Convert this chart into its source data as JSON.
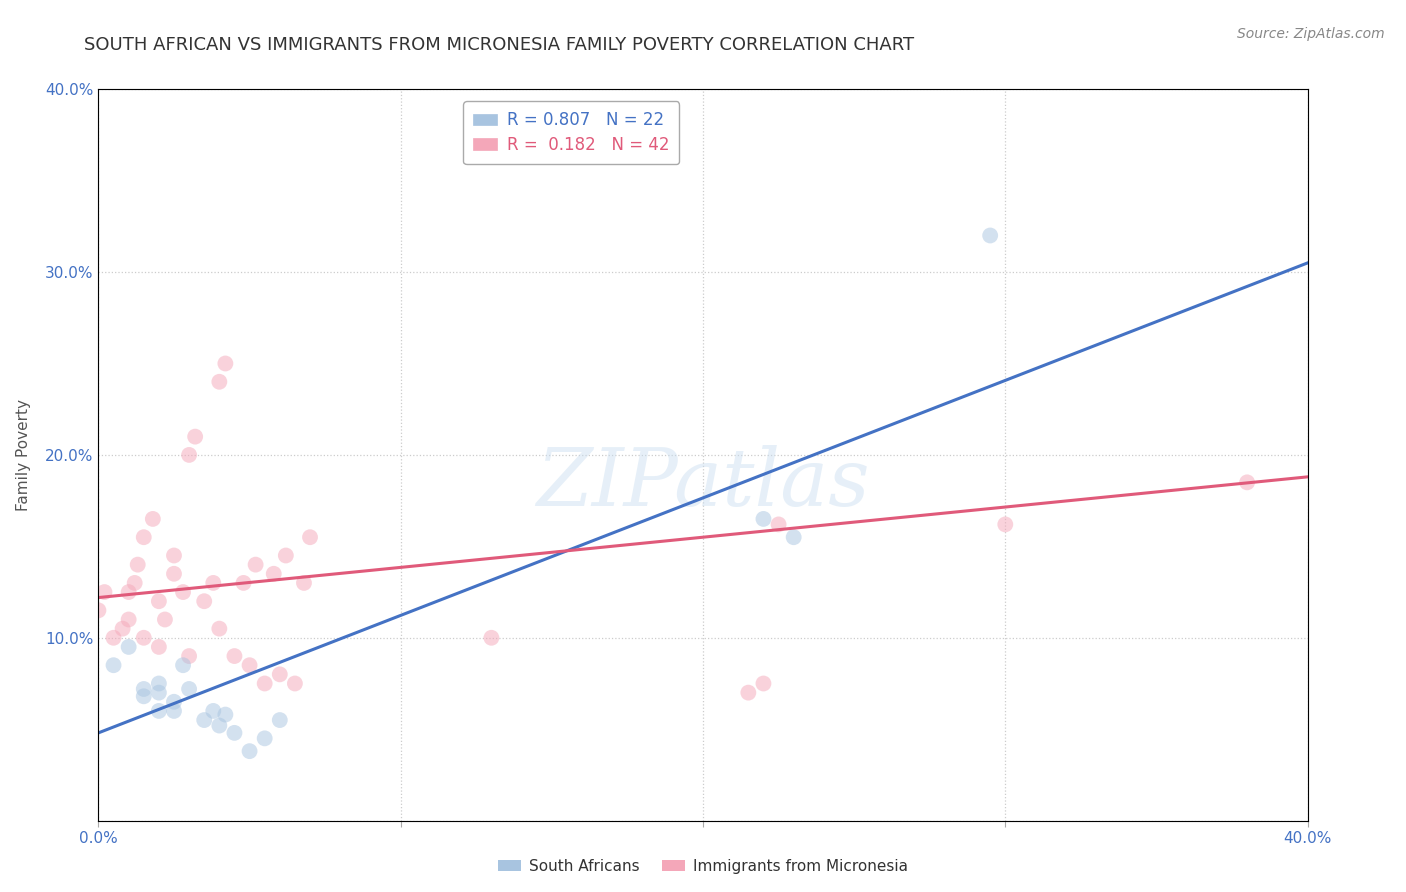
{
  "title": "SOUTH AFRICAN VS IMMIGRANTS FROM MICRONESIA FAMILY POVERTY CORRELATION CHART",
  "source": "Source: ZipAtlas.com",
  "ylabel": "Family Poverty",
  "xlim": [
    0.0,
    0.4
  ],
  "ylim": [
    0.0,
    0.4
  ],
  "xticks": [
    0.0,
    0.1,
    0.2,
    0.3,
    0.4
  ],
  "yticks": [
    0.0,
    0.1,
    0.2,
    0.3,
    0.4
  ],
  "grid_color": "#cccccc",
  "background_color": "#ffffff",
  "watermark": "ZIPatlas",
  "blue_R": 0.807,
  "blue_N": 22,
  "pink_R": 0.182,
  "pink_N": 42,
  "blue_color": "#a8c4e0",
  "blue_line_color": "#4472c4",
  "pink_color": "#f4a7b9",
  "pink_line_color": "#e05a7a",
  "blue_scatter_x": [
    0.005,
    0.01,
    0.015,
    0.015,
    0.02,
    0.02,
    0.02,
    0.025,
    0.025,
    0.028,
    0.03,
    0.035,
    0.038,
    0.04,
    0.042,
    0.045,
    0.05,
    0.055,
    0.06,
    0.22,
    0.23,
    0.295
  ],
  "blue_scatter_y": [
    0.085,
    0.095,
    0.068,
    0.072,
    0.06,
    0.07,
    0.075,
    0.06,
    0.065,
    0.085,
    0.072,
    0.055,
    0.06,
    0.052,
    0.058,
    0.048,
    0.038,
    0.045,
    0.055,
    0.165,
    0.155,
    0.32
  ],
  "pink_scatter_x": [
    0.0,
    0.002,
    0.005,
    0.008,
    0.01,
    0.01,
    0.012,
    0.013,
    0.015,
    0.015,
    0.018,
    0.02,
    0.02,
    0.022,
    0.025,
    0.025,
    0.028,
    0.03,
    0.03,
    0.032,
    0.035,
    0.038,
    0.04,
    0.04,
    0.042,
    0.045,
    0.048,
    0.05,
    0.052,
    0.055,
    0.058,
    0.06,
    0.062,
    0.065,
    0.068,
    0.07,
    0.13,
    0.215,
    0.22,
    0.225,
    0.3,
    0.38
  ],
  "pink_scatter_y": [
    0.115,
    0.125,
    0.1,
    0.105,
    0.11,
    0.125,
    0.13,
    0.14,
    0.1,
    0.155,
    0.165,
    0.095,
    0.12,
    0.11,
    0.135,
    0.145,
    0.125,
    0.09,
    0.2,
    0.21,
    0.12,
    0.13,
    0.105,
    0.24,
    0.25,
    0.09,
    0.13,
    0.085,
    0.14,
    0.075,
    0.135,
    0.08,
    0.145,
    0.075,
    0.13,
    0.155,
    0.1,
    0.07,
    0.075,
    0.162,
    0.162,
    0.185
  ],
  "blue_line_y0": 0.048,
  "blue_line_y1": 0.305,
  "pink_line_y0": 0.122,
  "pink_line_y1": 0.188,
  "legend_box_color": "#ffffff",
  "legend_border_color": "#aaaaaa",
  "title_fontsize": 13,
  "axis_label_fontsize": 11,
  "tick_fontsize": 11,
  "legend_fontsize": 12,
  "scatter_size": 130,
  "scatter_alpha": 0.5,
  "line_width": 2.2
}
